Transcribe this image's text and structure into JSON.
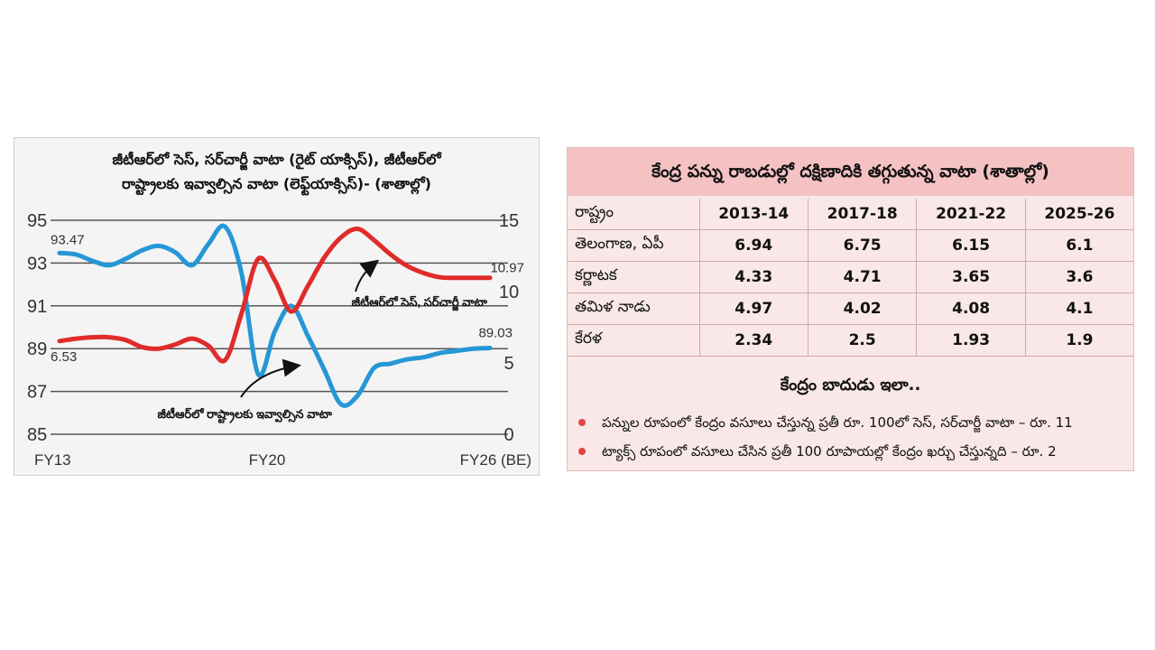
{
  "chart_data": {
    "type": "line",
    "title": "జీటీఆర్‌లో సెస్‌, సర్‌చార్జీ వాటా (రైట్‌ యాక్సిస్‌), జీటీఆర్‌లో రాష్ట్రాలకు ఇవ్వాల్సిన వాటా (లెఫ్ట్‌యాక్సిస్‌)- (శాతాల్లో)",
    "title_lines": [
      "జీటీఆర్‌లో సెస్‌, సర్‌చార్జీ వాటా (రైట్‌ యాక్సిస్‌), జీటీఆర్‌లో",
      "రాష్ట్రాలకు ఇవ్వాల్సిన వాటా (లెఫ్ట్‌యాక్సిస్‌)- (శాతాల్లో)"
    ],
    "x_tick_labels": [
      "FY13",
      "FY20",
      "FY26 (BE)"
    ],
    "y_left": {
      "ylim": [
        85,
        95
      ],
      "ticks": [
        95,
        93,
        91,
        89,
        87,
        85
      ]
    },
    "y_right": {
      "ylim": [
        0,
        15
      ],
      "ticks": [
        15,
        10,
        5,
        0
      ]
    },
    "grid": true,
    "series": [
      {
        "name": "జీటీఆర్‌లో రాష్ట్రాలకు ఇవ్వాల్సిన వాటా",
        "axis": "left",
        "color": "#2597d6",
        "x": [
          2013,
          2013.5,
          2014,
          2014.5,
          2015,
          2015.5,
          2016,
          2016.5,
          2017,
          2017.5,
          2018,
          2018.5,
          2019,
          2019.5,
          2020,
          2020.5,
          2021,
          2021.5,
          2022,
          2022.5,
          2023,
          2023.5,
          2024,
          2024.5,
          2025,
          2025.5,
          2026
        ],
        "y": [
          93.47,
          93.4,
          93.1,
          92.9,
          93.2,
          93.6,
          93.8,
          93.5,
          92.9,
          93.9,
          94.7,
          92.5,
          87.8,
          89.8,
          91.0,
          89.6,
          88.0,
          86.4,
          86.8,
          88.1,
          88.3,
          88.5,
          88.6,
          88.8,
          88.9,
          89.0,
          89.03
        ]
      },
      {
        "name": "జీటీఆర్‌లో సెస్‌, సర్‌చార్జీ వాటా",
        "axis": "right",
        "color": "#e02b2b",
        "x": [
          2013,
          2013.5,
          2014,
          2014.5,
          2015,
          2015.5,
          2016,
          2016.5,
          2017,
          2017.5,
          2018,
          2018.5,
          2019,
          2019.5,
          2020,
          2020.5,
          2021,
          2021.5,
          2022,
          2022.5,
          2023,
          2023.5,
          2024,
          2024.5,
          2025,
          2025.5,
          2026
        ],
        "y": [
          6.53,
          6.7,
          6.8,
          6.8,
          6.6,
          6.1,
          6.0,
          6.3,
          6.7,
          6.2,
          5.2,
          8.5,
          12.3,
          10.8,
          8.6,
          10.4,
          12.4,
          13.8,
          14.4,
          13.6,
          12.6,
          11.8,
          11.3,
          11.0,
          10.97,
          10.97,
          10.97
        ]
      }
    ],
    "data_labels": [
      "93.47",
      "6.53",
      "10.97",
      "89.03"
    ],
    "annotations": [
      "జీటీఆర్‌లో సెస్‌, సర్‌చార్జీ వాటా",
      "జీటీఆర్‌లో రాష్ట్రాలకు ఇవ్వాల్సిన వాటా"
    ]
  },
  "table": {
    "title": "కేంద్ర పన్ను రాబడుల్లో దక్షిణాదికి తగ్గుతున్న వాటా (శాతాల్లో)",
    "headers": [
      "రాష్ట్రం",
      "2013-14",
      "2017-18",
      "2021-22",
      "2025-26"
    ],
    "rows": [
      {
        "state": "తెలంగాణ, ఏపీ",
        "values": [
          "6.94",
          "6.75",
          "6.15",
          "6.1"
        ]
      },
      {
        "state": "కర్ణాటక",
        "values": [
          "4.33",
          "4.71",
          "3.65",
          "3.6"
        ]
      },
      {
        "state": "తమిళ నాడు",
        "values": [
          "4.97",
          "4.02",
          "4.08",
          "4.1"
        ]
      },
      {
        "state": "కేరళ",
        "values": [
          "2.34",
          "2.5",
          "1.93",
          "1.9"
        ]
      }
    ],
    "subtitle": "కేంద్రం బాదుడు ఇలా..",
    "bullets": [
      "పన్నుల రూపంలో కేంద్రం వసూలు చేస్తున్న ప్రతీ రూ. 100లో సెస్‌, సర్‌చార్జీ వాటా – రూ. 11",
      "ట్యాక్స్‌ రూపంలో వసూలు చేసిన ప్రతీ 100 రూపాయల్లో కేంద్రం ఖర్చు చేస్తున్నది – రూ. 2"
    ]
  },
  "colors": {
    "blue_line": "#2597d6",
    "red_line": "#e02b2b",
    "table_header_bg": "#f5c2c4",
    "table_bg": "#fae8e8",
    "bullet": "#e04545"
  }
}
